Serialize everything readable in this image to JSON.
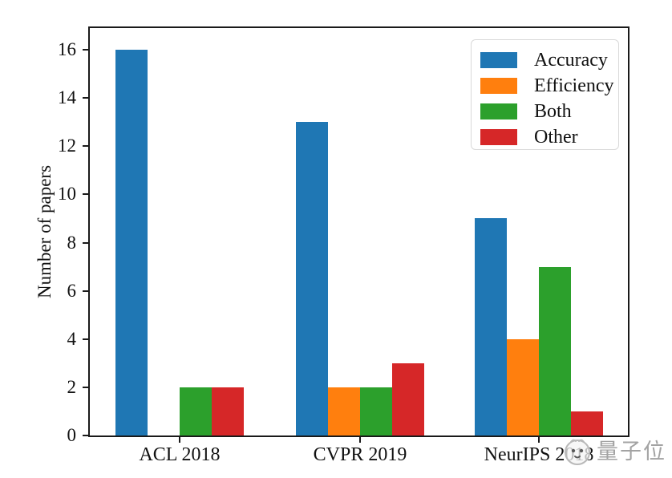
{
  "chart_data": {
    "type": "bar",
    "title": "",
    "xlabel": "",
    "ylabel": "Number of papers",
    "categories": [
      "ACL 2018",
      "CVPR 2019",
      "NeurIPS 2018"
    ],
    "series": [
      {
        "name": "Accuracy",
        "color": "#1f77b4",
        "values": [
          16,
          13,
          9
        ]
      },
      {
        "name": "Efficiency",
        "color": "#ff7f0e",
        "values": [
          0,
          2,
          4
        ]
      },
      {
        "name": "Both",
        "color": "#2ca02c",
        "values": [
          2,
          2,
          7
        ]
      },
      {
        "name": "Other",
        "color": "#d62728",
        "values": [
          2,
          3,
          1
        ]
      }
    ],
    "ylim": [
      0,
      16.9
    ],
    "yticks": [
      0,
      2,
      4,
      6,
      8,
      10,
      12,
      14,
      16
    ],
    "legend_position": "upper-right",
    "grid": false,
    "axis_color": "#1a1a1a"
  },
  "watermark": {
    "text": "量子位",
    "logo": "qbitai-face-icon",
    "color": "#a3a3a3"
  }
}
